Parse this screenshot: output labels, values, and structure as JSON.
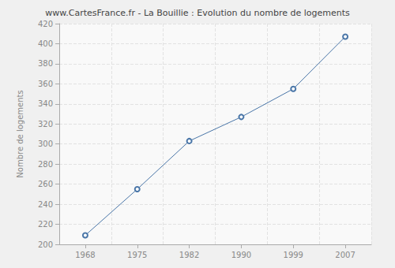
{
  "chart_data": {
    "type": "line",
    "title": "www.CartesFrance.fr - La Bouillie : Evolution du nombre de logements",
    "y_label": "Nombre de logements",
    "categories": [
      "1968",
      "1975",
      "1982",
      "1990",
      "1999",
      "2007"
    ],
    "values": [
      209,
      255,
      303,
      327,
      355,
      407
    ],
    "color": "#4a76a8",
    "marker": "circle",
    "ylim": [
      200,
      420
    ],
    "yticks": [
      200,
      220,
      240,
      260,
      280,
      300,
      320,
      340,
      360,
      380,
      400,
      420
    ],
    "grid": true
  }
}
